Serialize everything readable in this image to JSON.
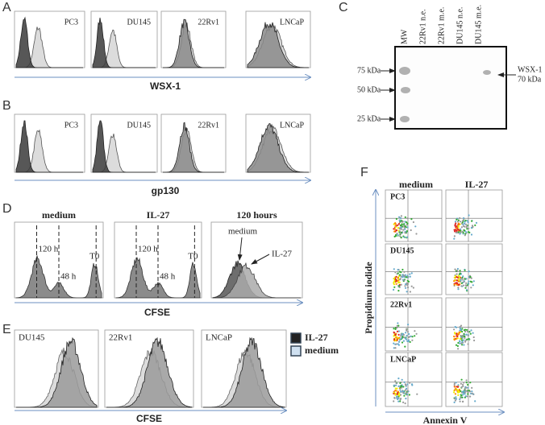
{
  "panels": {
    "A": {
      "letter": "A",
      "samples": [
        "PC3",
        "DU145",
        "22Rv1",
        "LNCaP"
      ],
      "axis_label": "WSX-1"
    },
    "B": {
      "letter": "B",
      "samples": [
        "PC3",
        "DU145",
        "22Rv1",
        "LNCaP"
      ],
      "axis_label": "gp130"
    },
    "C": {
      "letter": "C",
      "lanes": [
        "MW",
        "22Rv1 n.e.",
        "22Rv1 m.e.",
        "DU145 n.e.",
        "DU145 m.e."
      ],
      "markers": [
        "75 kDa",
        "50 kDa",
        "25 kDa"
      ],
      "band_label": [
        "WSX-1",
        "70 kDa"
      ]
    },
    "D": {
      "letter": "D",
      "plots": [
        {
          "title": "medium",
          "labels": [
            "120 h",
            "48 h",
            "T0"
          ]
        },
        {
          "title": "IL-27",
          "labels": [
            "120 h",
            "48 h",
            "T0"
          ]
        },
        {
          "title": "120 hours",
          "labels": [
            "medium",
            "IL-27"
          ]
        }
      ],
      "axis_label": "CFSE"
    },
    "E": {
      "letter": "E",
      "samples": [
        "DU145",
        "22Rv1",
        "LNCaP"
      ],
      "legend": [
        "IL-27",
        "medium"
      ],
      "axis_label": "CFSE"
    },
    "F": {
      "letter": "F",
      "columns": [
        "medium",
        "IL-27"
      ],
      "rows": [
        "PC3",
        "DU145",
        "22Rv1",
        "LNCaP"
      ],
      "y_label": "Propidium iodide",
      "x_label": "Annexin V"
    }
  }
}
